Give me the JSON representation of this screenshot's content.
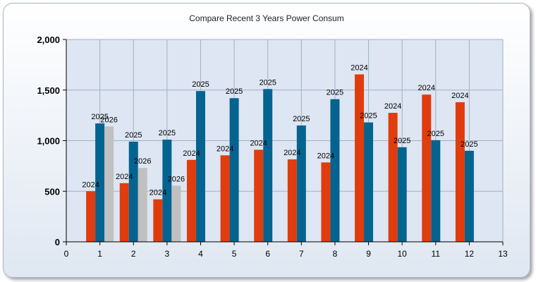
{
  "chart_data": {
    "type": "bar",
    "title": "Compare Recent 3 Years Power Consum",
    "xlabel": "",
    "ylabel": "",
    "xlim": [
      0,
      13
    ],
    "ylim": [
      0,
      2000
    ],
    "x_ticks": [
      "0",
      "1",
      "2",
      "3",
      "4",
      "5",
      "6",
      "7",
      "8",
      "9",
      "10",
      "11",
      "12",
      "13"
    ],
    "y_ticks": [
      "0",
      "500",
      "1,000",
      "1,500",
      "2,000"
    ],
    "y_tick_values": [
      0,
      500,
      1000,
      1500,
      2000
    ],
    "grid": true,
    "series": [
      {
        "label": "2024",
        "color": "#e03c0e",
        "x": [
          1,
          2,
          3,
          4,
          5,
          6,
          7,
          8,
          9,
          10,
          11,
          12
        ],
        "values": [
          500,
          580,
          420,
          810,
          855,
          910,
          815,
          785,
          1655,
          1275,
          1455,
          1380
        ]
      },
      {
        "label": "2025",
        "color": "#05638f",
        "x": [
          1,
          2,
          3,
          4,
          5,
          6,
          7,
          8,
          9,
          10,
          11,
          12
        ],
        "values": [
          1170,
          990,
          1010,
          1490,
          1420,
          1510,
          1150,
          1410,
          1180,
          935,
          1005,
          900
        ]
      },
      {
        "label": "2026",
        "color": "#c0c0c0",
        "x": [
          1,
          2,
          3
        ],
        "values": [
          1140,
          730,
          555
        ]
      }
    ]
  }
}
